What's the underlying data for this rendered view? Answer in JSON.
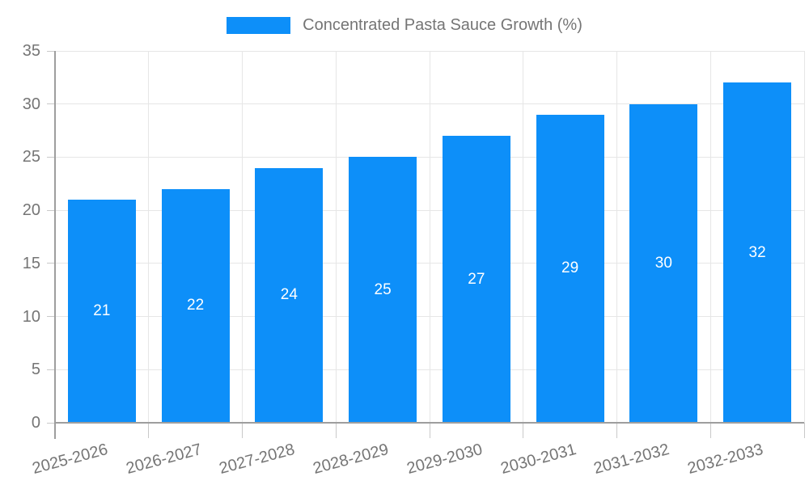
{
  "chart_data": {
    "type": "bar",
    "title": "",
    "xlabel": "",
    "ylabel": "",
    "legend": {
      "label": "Concentrated Pasta Sauce Growth (%)",
      "position": "top-center"
    },
    "categories": [
      "2025-2026",
      "2026-2027",
      "2027-2028",
      "2028-2029",
      "2029-2030",
      "2030-2031",
      "2031-2032",
      "2032-2033"
    ],
    "series": [
      {
        "name": "Concentrated Pasta Sauce Growth (%)",
        "values": [
          21,
          22,
          24,
          25,
          27,
          29,
          30,
          32
        ]
      }
    ],
    "value_labels_shown": true,
    "ylim": [
      0,
      35
    ],
    "yticks": [
      0,
      5,
      10,
      15,
      20,
      25,
      30,
      35
    ],
    "grid": true,
    "x_tick_rotation_deg": -15,
    "colors": {
      "bar": "#0d8ff9",
      "grid": "#e6e6e6",
      "axis": "#9e9e9e",
      "tick_mark": "#c9c9c9",
      "tick_text": "#757575",
      "legend_text": "#757575",
      "value_label_text": "#ffffff",
      "background": "#ffffff"
    }
  }
}
